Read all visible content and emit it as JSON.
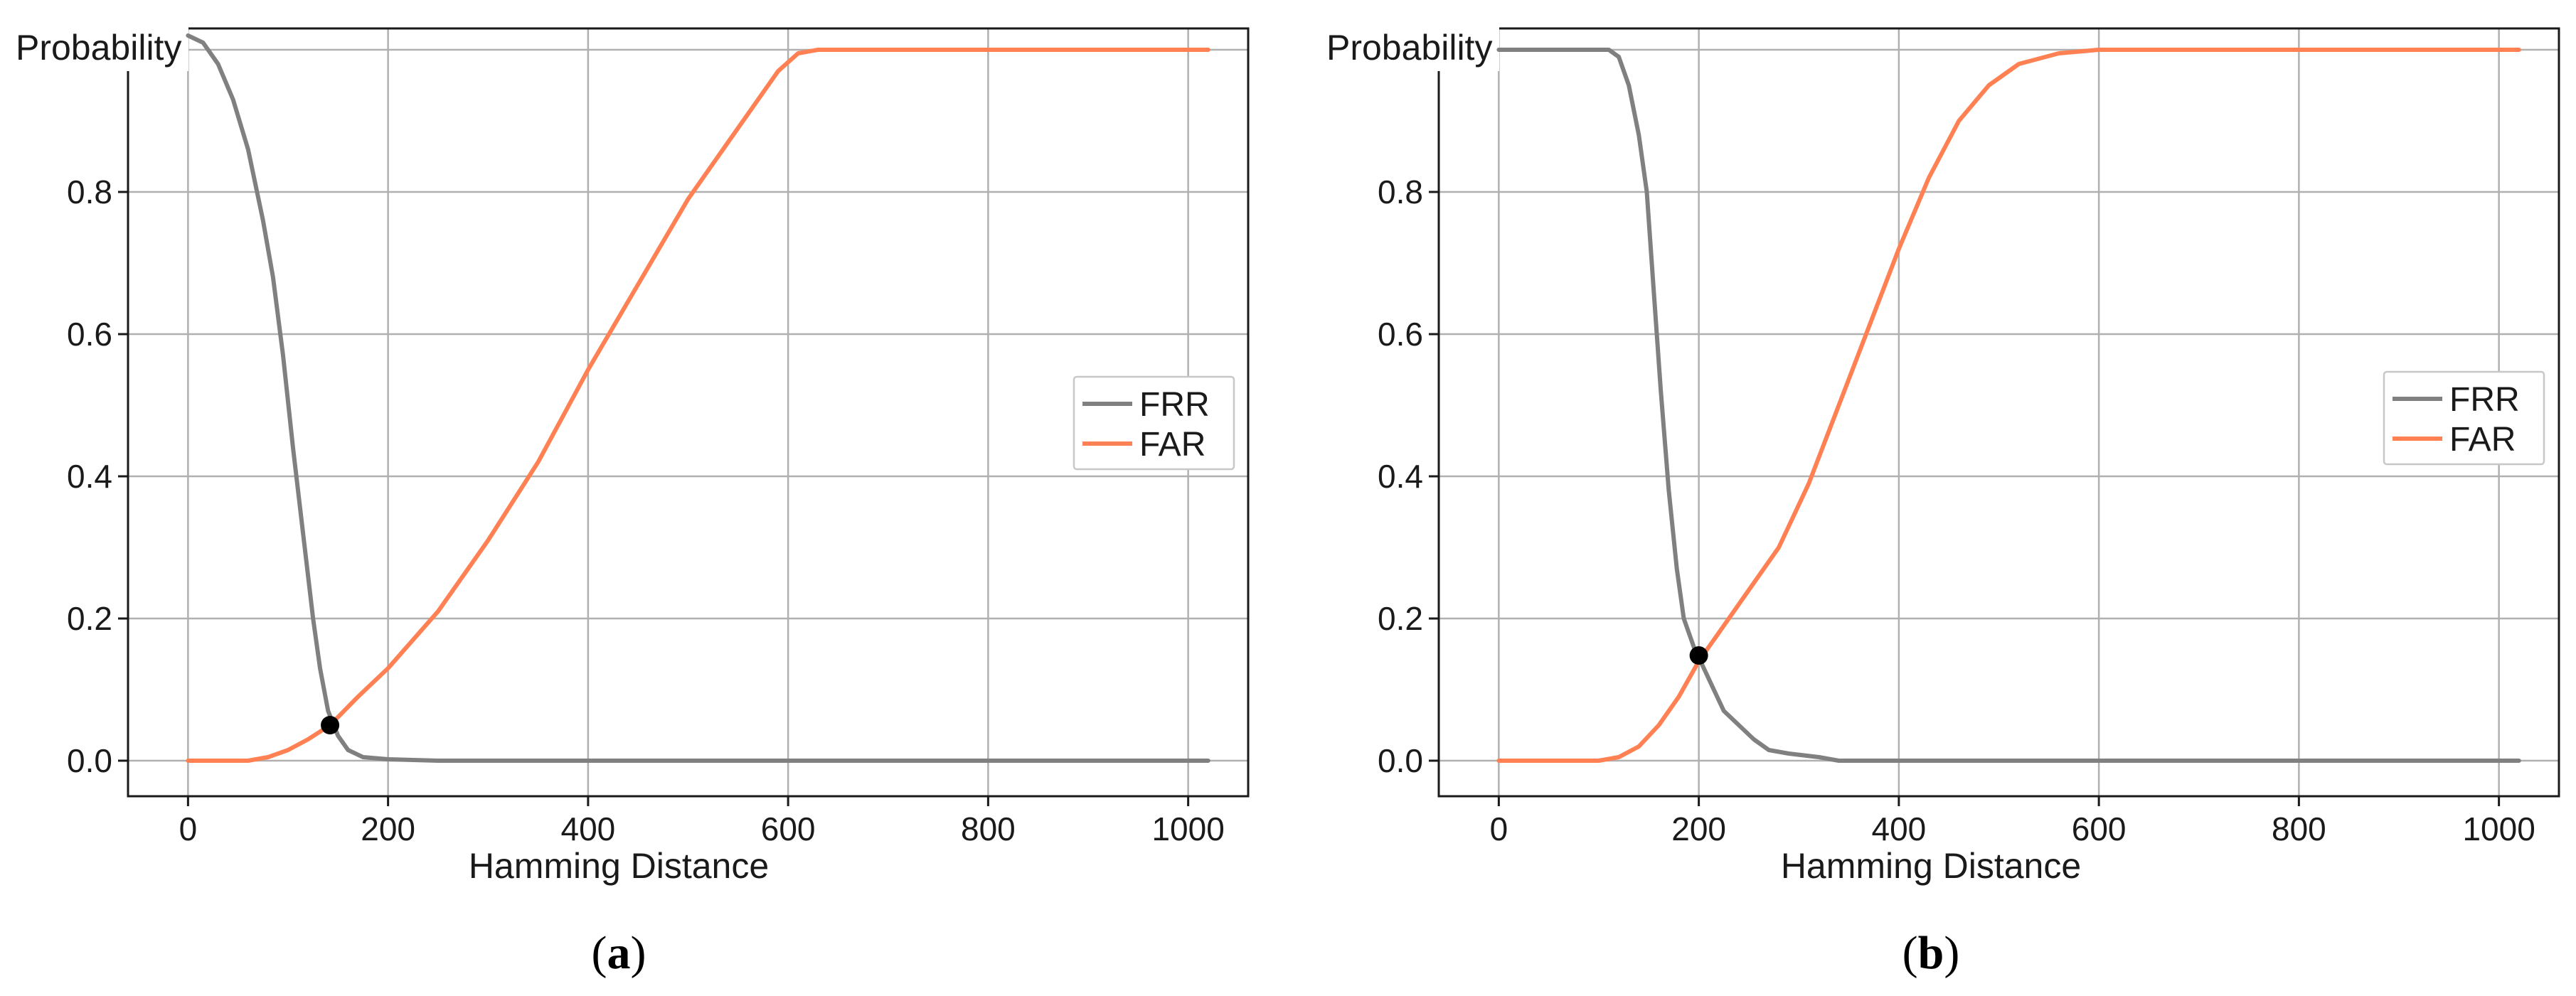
{
  "chart_data": [
    {
      "type": "line",
      "panel": "a",
      "ylabel": "Probability",
      "xlabel": "Hamming Distance",
      "xlim": [
        -60,
        1060
      ],
      "ylim": [
        -0.05,
        1.03
      ],
      "xticks": [
        "0",
        "200",
        "400",
        "600",
        "800",
        "1000"
      ],
      "xtick_values": [
        0,
        200,
        400,
        600,
        800,
        1000
      ],
      "yticks": [
        "0.0",
        "0.2",
        "0.4",
        "0.6",
        "0.8",
        "1.0"
      ],
      "ytick_values": [
        0,
        0.2,
        0.4,
        0.6,
        0.8,
        1.0
      ],
      "grid": true,
      "legend_position": "center-right",
      "series": [
        {
          "name": "FRR",
          "color": "#808080",
          "points": [
            [
              0,
              1.02
            ],
            [
              15,
              1.01
            ],
            [
              30,
              0.98
            ],
            [
              45,
              0.93
            ],
            [
              60,
              0.86
            ],
            [
              75,
              0.76
            ],
            [
              85,
              0.68
            ],
            [
              95,
              0.57
            ],
            [
              105,
              0.44
            ],
            [
              115,
              0.32
            ],
            [
              125,
              0.2
            ],
            [
              132,
              0.13
            ],
            [
              140,
              0.07
            ],
            [
              150,
              0.035
            ],
            [
              160,
              0.015
            ],
            [
              175,
              0.005
            ],
            [
              200,
              0.002
            ],
            [
              250,
              0.0
            ],
            [
              1020,
              0.0
            ]
          ]
        },
        {
          "name": "FAR",
          "color": "#FF8052",
          "points": [
            [
              0,
              0.0
            ],
            [
              60,
              0.0
            ],
            [
              80,
              0.005
            ],
            [
              100,
              0.015
            ],
            [
              120,
              0.03
            ],
            [
              142,
              0.05
            ],
            [
              170,
              0.09
            ],
            [
              200,
              0.13
            ],
            [
              250,
              0.21
            ],
            [
              300,
              0.31
            ],
            [
              350,
              0.42
            ],
            [
              400,
              0.55
            ],
            [
              450,
              0.67
            ],
            [
              500,
              0.79
            ],
            [
              550,
              0.89
            ],
            [
              590,
              0.97
            ],
            [
              610,
              0.995
            ],
            [
              630,
              1.0
            ],
            [
              1020,
              1.0
            ]
          ]
        }
      ],
      "marker": {
        "x": 142,
        "y": 0.05,
        "color": "#000000"
      },
      "panel_label": "a"
    },
    {
      "type": "line",
      "panel": "b",
      "ylabel": "Probability",
      "xlabel": "Hamming Distance",
      "xlim": [
        -60,
        1060
      ],
      "ylim": [
        -0.05,
        1.03
      ],
      "xticks": [
        "0",
        "200",
        "400",
        "600",
        "800",
        "1000"
      ],
      "xtick_values": [
        0,
        200,
        400,
        600,
        800,
        1000
      ],
      "yticks": [
        "0.0",
        "0.2",
        "0.4",
        "0.6",
        "0.8",
        "1.0"
      ],
      "ytick_values": [
        0,
        0.2,
        0.4,
        0.6,
        0.8,
        1.0
      ],
      "grid": true,
      "legend_position": "center-right",
      "series": [
        {
          "name": "FRR",
          "color": "#808080",
          "points": [
            [
              0,
              1.0
            ],
            [
              110,
              1.0
            ],
            [
              120,
              0.99
            ],
            [
              130,
              0.95
            ],
            [
              140,
              0.88
            ],
            [
              148,
              0.8
            ],
            [
              155,
              0.66
            ],
            [
              162,
              0.52
            ],
            [
              170,
              0.38
            ],
            [
              178,
              0.27
            ],
            [
              185,
              0.2
            ],
            [
              195,
              0.16
            ],
            [
              205,
              0.13
            ],
            [
              215,
              0.1
            ],
            [
              225,
              0.07
            ],
            [
              240,
              0.05
            ],
            [
              255,
              0.03
            ],
            [
              270,
              0.015
            ],
            [
              290,
              0.01
            ],
            [
              320,
              0.005
            ],
            [
              340,
              0.0
            ],
            [
              1020,
              0.0
            ]
          ]
        },
        {
          "name": "FAR",
          "color": "#FF8052",
          "points": [
            [
              0,
              0.0
            ],
            [
              100,
              0.0
            ],
            [
              120,
              0.005
            ],
            [
              140,
              0.02
            ],
            [
              160,
              0.05
            ],
            [
              180,
              0.09
            ],
            [
              200,
              0.14
            ],
            [
              220,
              0.18
            ],
            [
              250,
              0.24
            ],
            [
              280,
              0.3
            ],
            [
              310,
              0.39
            ],
            [
              340,
              0.5
            ],
            [
              370,
              0.61
            ],
            [
              400,
              0.72
            ],
            [
              430,
              0.82
            ],
            [
              460,
              0.9
            ],
            [
              490,
              0.95
            ],
            [
              520,
              0.98
            ],
            [
              560,
              0.995
            ],
            [
              600,
              1.0
            ],
            [
              1020,
              1.0
            ]
          ]
        }
      ],
      "marker": {
        "x": 200,
        "y": 0.148,
        "color": "#000000"
      },
      "panel_label": "b"
    }
  ]
}
